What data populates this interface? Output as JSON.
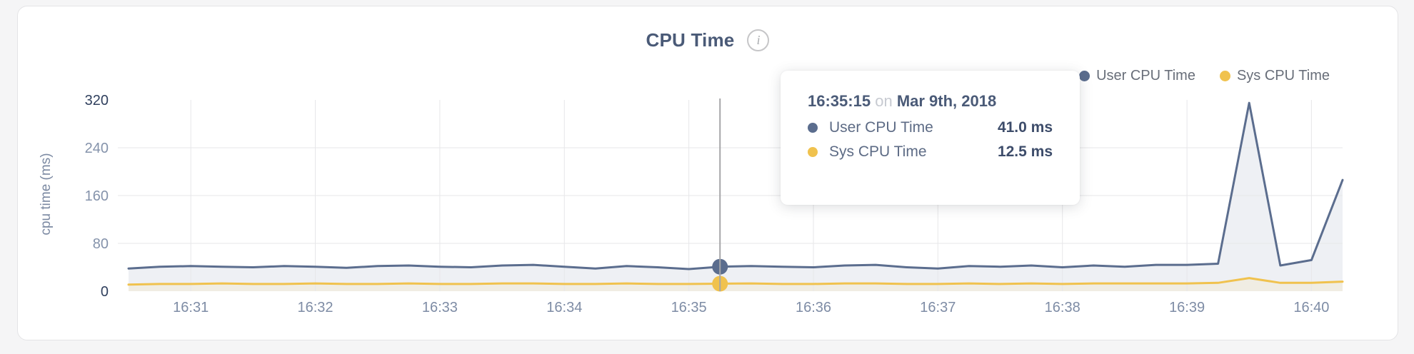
{
  "header": {
    "title": "CPU Time",
    "info_icon": "i"
  },
  "legend": {
    "items": [
      {
        "label": "User CPU Time",
        "color": "#5b6d8e"
      },
      {
        "label": "Sys CPU Time",
        "color": "#f0c24e"
      }
    ]
  },
  "tooltip": {
    "time": "16:35:15",
    "connector": "on",
    "date": "Mar 9th, 2018",
    "rows": [
      {
        "label": "User CPU Time",
        "value": "41.0 ms",
        "color": "#5b6d8e"
      },
      {
        "label": "Sys CPU Time",
        "value": "12.5 ms",
        "color": "#f0c24e"
      }
    ]
  },
  "chart_data": {
    "type": "area",
    "title": "CPU Time",
    "xlabel": "",
    "ylabel": "cpu time (ms)",
    "ylim": [
      0,
      320
    ],
    "y_ticks": [
      0,
      80,
      160,
      240,
      320
    ],
    "x_tick_labels": [
      "16:31",
      "16:32",
      "16:33",
      "16:34",
      "16:35",
      "16:36",
      "16:37",
      "16:38",
      "16:39",
      "16:40"
    ],
    "start_time": "16:30:30",
    "end_time": "16:40:15",
    "sample_interval_seconds": 15,
    "grid": true,
    "legend_position": "top-right",
    "highlight_index": 19,
    "highlight_time": "16:35:15",
    "series": [
      {
        "name": "User CPU Time",
        "color": "#5b6d8e",
        "fill": "#eef0f4",
        "values": [
          38,
          41,
          42,
          41,
          40,
          42,
          41,
          39,
          42,
          43,
          41,
          40,
          43,
          44,
          41,
          38,
          42,
          40,
          37,
          41,
          42,
          41,
          40,
          43,
          44,
          40,
          38,
          42,
          41,
          43,
          40,
          43,
          41,
          44,
          44,
          46,
          315,
          43,
          52,
          186
        ]
      },
      {
        "name": "Sys CPU Time",
        "color": "#f0c24e",
        "fill": "#f0ede3",
        "values": [
          11,
          12,
          12,
          13,
          12,
          12,
          13,
          12,
          12,
          13,
          12,
          12,
          13,
          13,
          12,
          12,
          13,
          12,
          12,
          12.5,
          13,
          12,
          12,
          13,
          13,
          12,
          12,
          13,
          12,
          13,
          12,
          13,
          13,
          13,
          13,
          14,
          22,
          14,
          14,
          16
        ]
      }
    ]
  }
}
